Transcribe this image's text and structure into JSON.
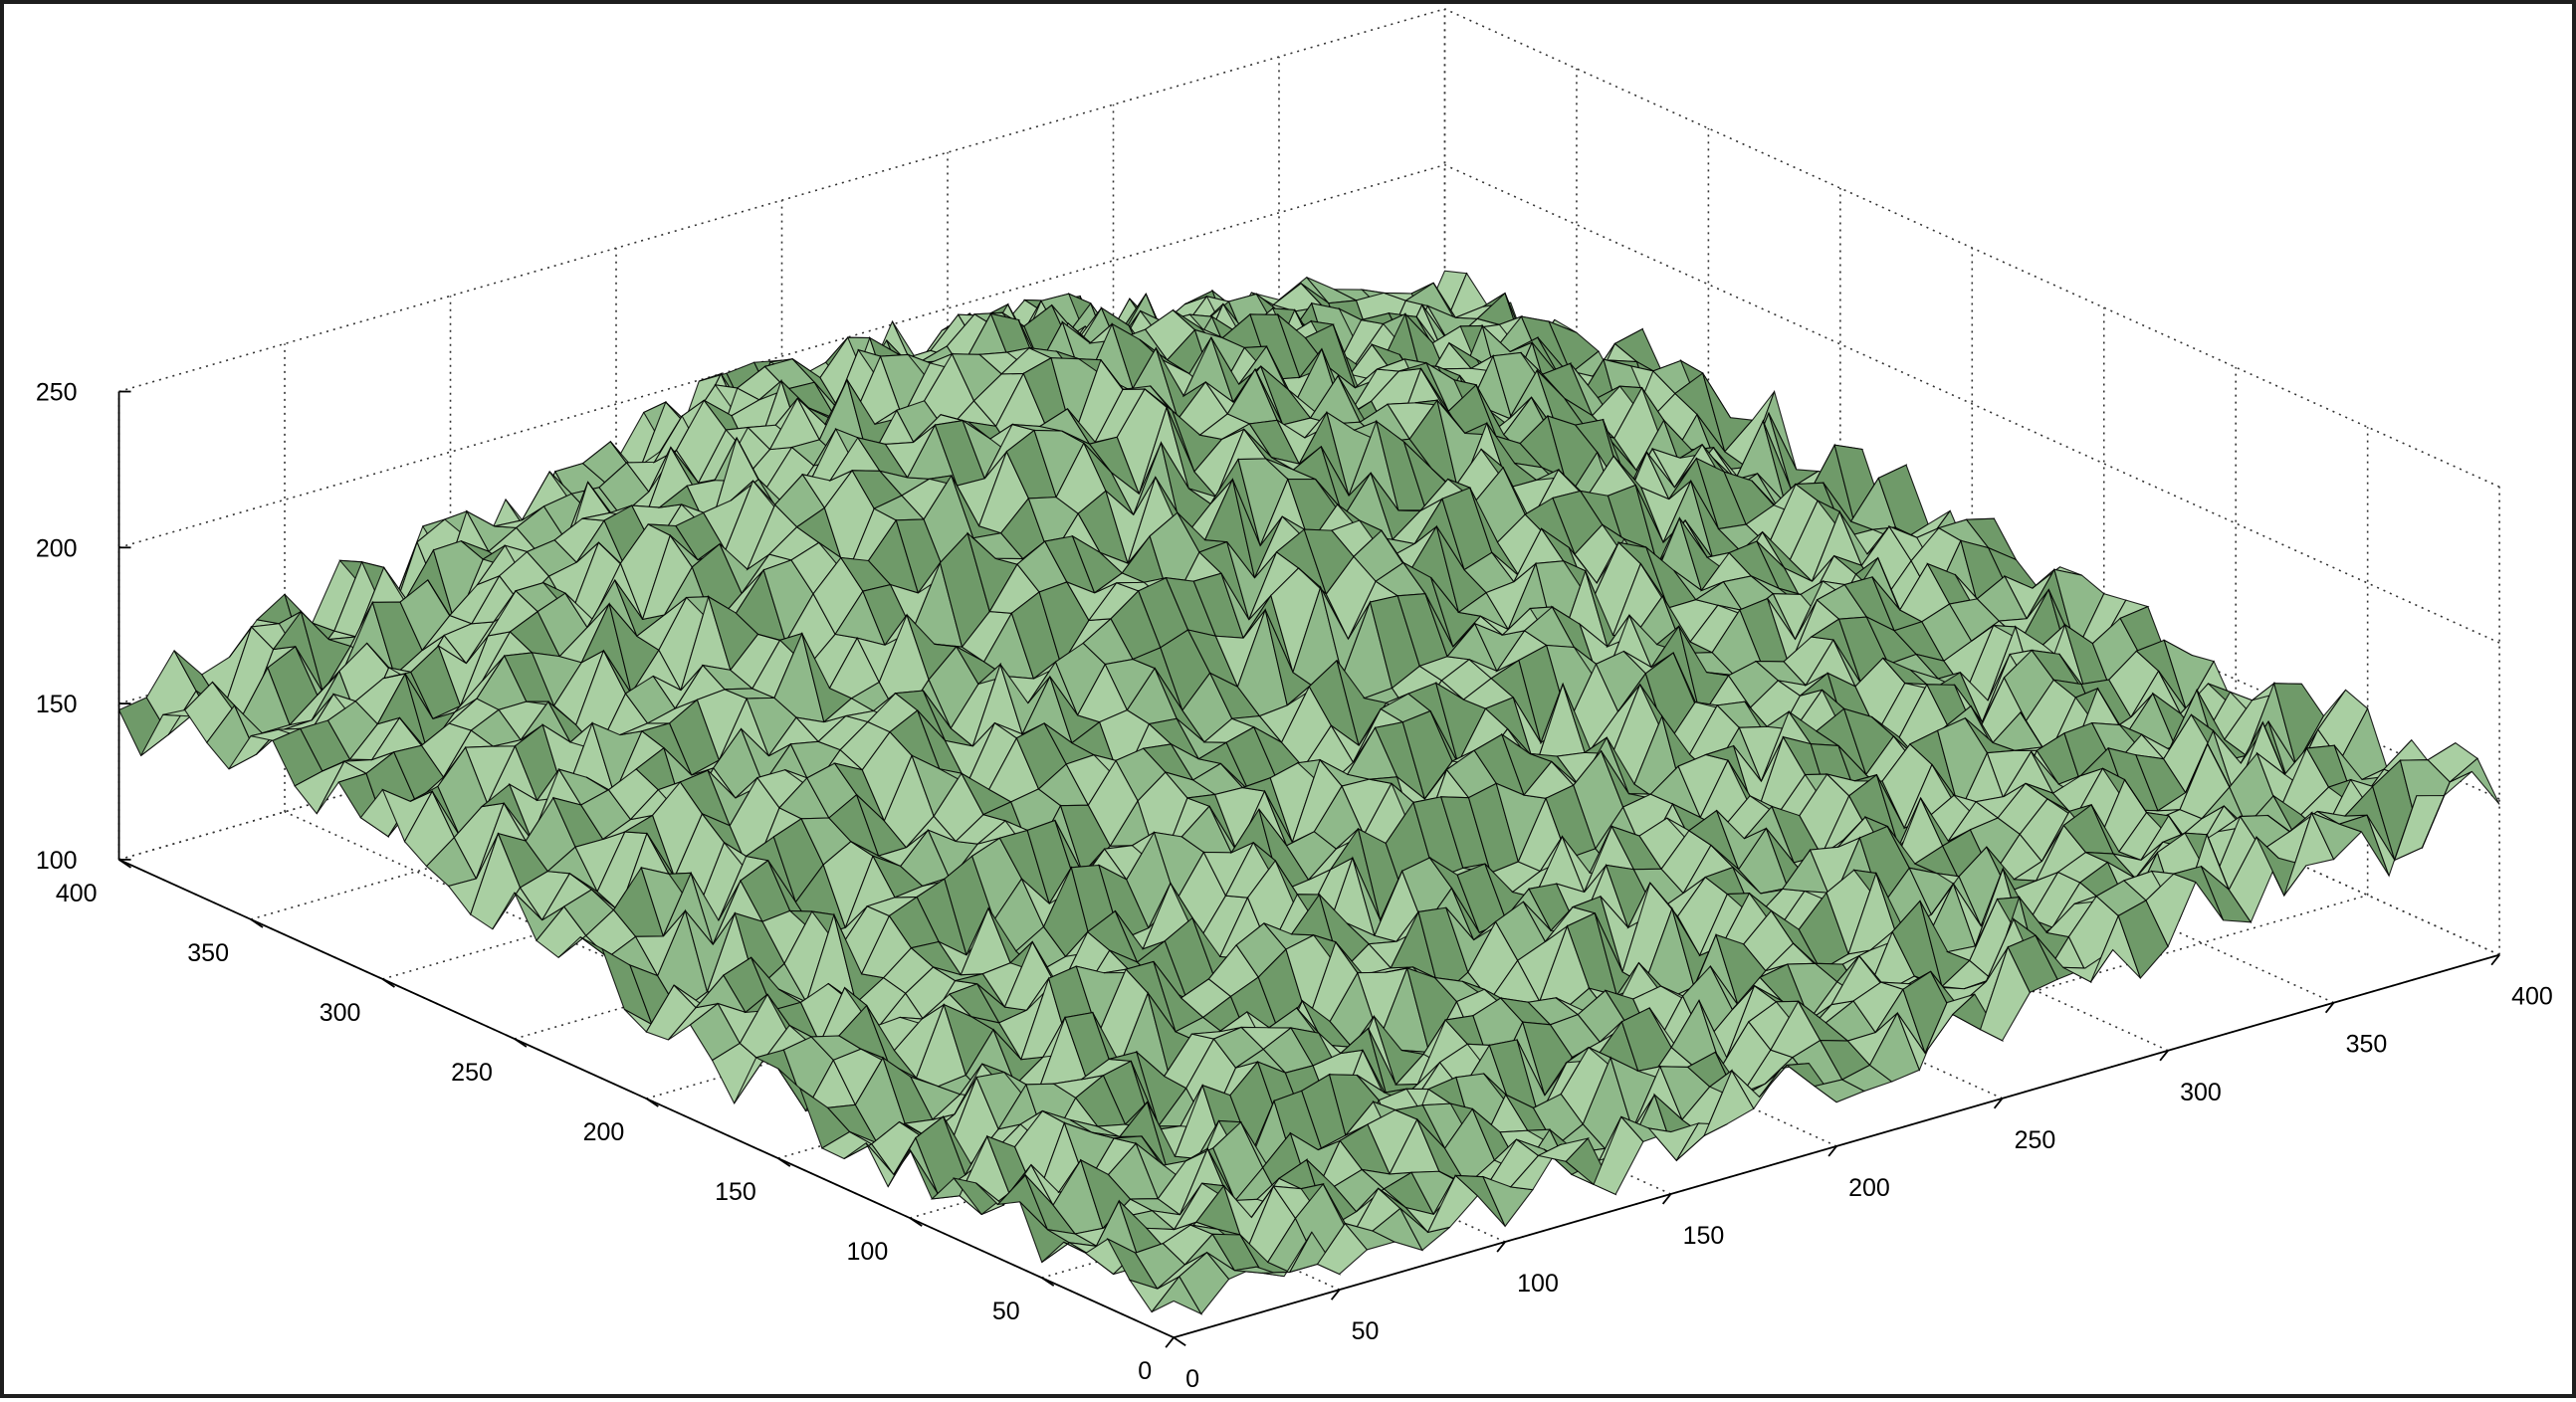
{
  "chart_data": {
    "type": "surface",
    "title": "",
    "xlabel": "",
    "ylabel": "",
    "zlabel": "",
    "xlim": [
      0,
      400
    ],
    "ylim": [
      0,
      400
    ],
    "zlim": [
      100,
      250
    ],
    "x_ticks": [
      "0",
      "50",
      "100",
      "150",
      "200",
      "250",
      "300",
      "350",
      "400"
    ],
    "y_ticks": [
      "0",
      "50",
      "100",
      "150",
      "200",
      "250",
      "300",
      "350",
      "400"
    ],
    "z_ticks": [
      "100",
      "150",
      "200",
      "250"
    ],
    "grid": true,
    "box": true,
    "edge_color": "#000000",
    "face_color": "#8fb98a",
    "surface_description_values": {
      "min_z": 105,
      "max_z": 232,
      "corner_z": {
        "x0_y0": 108,
        "x400_y0": 150,
        "x0_y400": 132,
        "x400_y400": 150
      },
      "peak_near": {
        "x": 150,
        "y": 320,
        "z": 232
      }
    }
  }
}
